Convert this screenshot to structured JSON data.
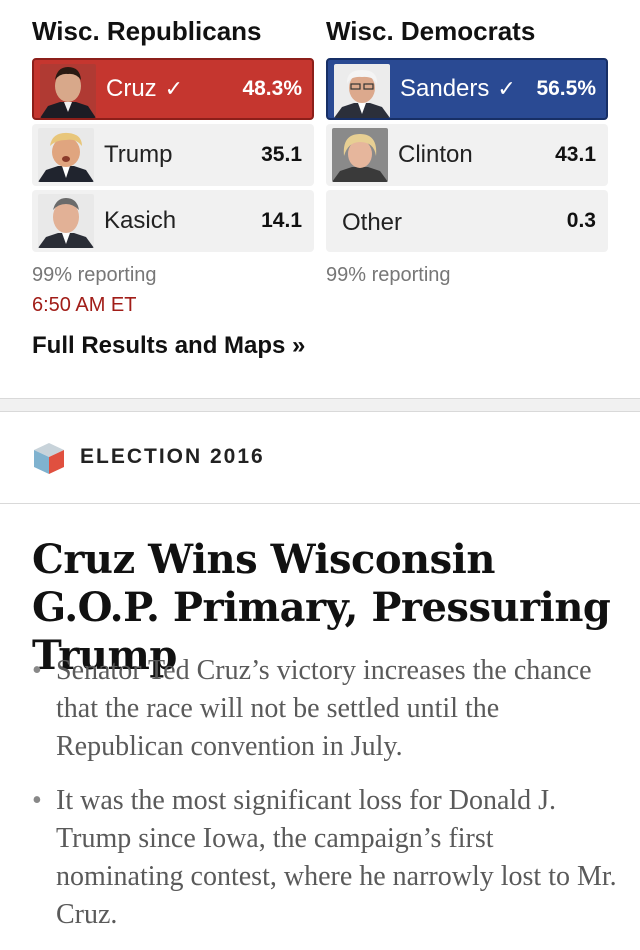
{
  "results": {
    "republicans": {
      "title": "Wisc. Republicans",
      "rows": [
        {
          "name": "Cruz",
          "value": "48.3%",
          "winner": true
        },
        {
          "name": "Trump",
          "value": "35.1",
          "winner": false
        },
        {
          "name": "Kasich",
          "value": "14.1",
          "winner": false
        }
      ],
      "reporting": "99% reporting"
    },
    "democrats": {
      "title": "Wisc. Democrats",
      "rows": [
        {
          "name": "Sanders",
          "value": "56.5%",
          "winner": true
        },
        {
          "name": "Clinton",
          "value": "43.1",
          "winner": false
        },
        {
          "name": "Other",
          "value": "0.3",
          "winner": false
        }
      ],
      "reporting": "99% reporting"
    },
    "timestamp": "6:50 AM ET",
    "full_results_link": "Full Results and Maps »",
    "check_icon": "checkmark-icon",
    "colors": {
      "republican": "#c5362f",
      "democrat": "#2a4a93",
      "timestamp": "#a11d18"
    }
  },
  "section": {
    "icon": "election-cube-icon",
    "label": "ELECTION 2016"
  },
  "article": {
    "headline": "Cruz Wins Wisconsin G.O.P. Primary, Pressuring Trump",
    "bullets": [
      "Senator Ted Cruz’s victory increases the chance that the race will not be settled until the Republican convention in July.",
      "It was the most significant loss for Donald J. Trump since Iowa, the campaign’s first nominating contest, where he narrowly lost to Mr. Cruz."
    ]
  }
}
